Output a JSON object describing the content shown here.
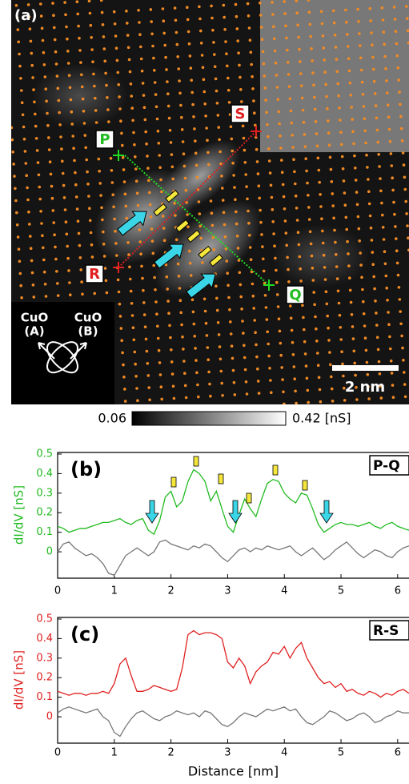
{
  "panel_a": {
    "label": "(a)",
    "points": [
      "P",
      "Q",
      "R",
      "S"
    ],
    "inset": [
      "CuO",
      "(A)",
      "CuO",
      "(B)"
    ],
    "scale_bar": "2 nm"
  },
  "colorbar": {
    "min_label": "0.06",
    "max_label": "0.42 [nS]"
  },
  "chart_data": [
    {
      "type": "line",
      "panel_label": "(b)",
      "tag": "P-Q",
      "ylabel": "dI/dV [nS]",
      "label_color": "#22bb22",
      "x": [
        0,
        0.1,
        0.2,
        0.3,
        0.4,
        0.5,
        0.6,
        0.7,
        0.8,
        0.9,
        1.0,
        1.1,
        1.2,
        1.3,
        1.4,
        1.5,
        1.6,
        1.7,
        1.8,
        1.9,
        2.0,
        2.1,
        2.2,
        2.3,
        2.4,
        2.5,
        2.6,
        2.7,
        2.8,
        2.9,
        3.0,
        3.1,
        3.2,
        3.3,
        3.4,
        3.5,
        3.6,
        3.7,
        3.8,
        3.9,
        4.0,
        4.1,
        4.2,
        4.3,
        4.4,
        4.5,
        4.6,
        4.7,
        4.8,
        4.9,
        5.0,
        5.1,
        5.2,
        5.3,
        5.4,
        5.5,
        5.6,
        5.7,
        5.8,
        5.9,
        6.0,
        6.1,
        6.2
      ],
      "series": [
        {
          "color": "#22bb22",
          "values": [
            0.13,
            0.12,
            0.1,
            0.11,
            0.12,
            0.12,
            0.13,
            0.14,
            0.15,
            0.15,
            0.16,
            0.17,
            0.15,
            0.14,
            0.16,
            0.17,
            0.11,
            0.09,
            0.16,
            0.28,
            0.31,
            0.23,
            0.26,
            0.36,
            0.42,
            0.4,
            0.36,
            0.26,
            0.31,
            0.22,
            0.13,
            0.1,
            0.19,
            0.27,
            0.22,
            0.18,
            0.27,
            0.35,
            0.37,
            0.36,
            0.3,
            0.27,
            0.25,
            0.3,
            0.29,
            0.22,
            0.14,
            0.1,
            0.12,
            0.14,
            0.15,
            0.14,
            0.14,
            0.13,
            0.14,
            0.15,
            0.13,
            0.12,
            0.14,
            0.15,
            0.13,
            0.12,
            0.11
          ]
        },
        {
          "color": "#777777",
          "values": [
            0.0,
            0.04,
            0.05,
            0.02,
            0.0,
            -0.02,
            -0.01,
            -0.03,
            -0.06,
            -0.11,
            -0.12,
            -0.07,
            -0.02,
            0.0,
            0.02,
            0.0,
            -0.02,
            0.0,
            0.05,
            0.06,
            0.04,
            0.03,
            0.02,
            0.01,
            0.03,
            0.02,
            0.04,
            0.03,
            0.0,
            -0.03,
            -0.05,
            -0.02,
            0.01,
            0.02,
            0.0,
            0.02,
            0.01,
            0.03,
            0.02,
            0.01,
            0.02,
            0.03,
            0.0,
            -0.02,
            0.0,
            0.02,
            -0.01,
            -0.04,
            -0.02,
            0.01,
            0.03,
            0.05,
            0.02,
            -0.01,
            -0.03,
            -0.01,
            0.01,
            0.0,
            -0.02,
            -0.03,
            0.0,
            0.02,
            0.03
          ]
        }
      ],
      "xlim": [
        0,
        6.2
      ],
      "ylim": [
        -0.135,
        0.5
      ],
      "xticks": [
        0,
        1,
        2,
        3,
        4,
        5,
        6
      ],
      "yticks": [
        0,
        0.1,
        0.2,
        0.3,
        0.4,
        0.5
      ]
    },
    {
      "type": "line",
      "panel_label": "(c)",
      "tag": "R-S",
      "ylabel": "dI/dV [nS]",
      "xlabel": "Distance [nm]",
      "label_color": "#e02020",
      "x": [
        0,
        0.1,
        0.2,
        0.3,
        0.4,
        0.5,
        0.6,
        0.7,
        0.8,
        0.9,
        1.0,
        1.1,
        1.2,
        1.3,
        1.4,
        1.5,
        1.6,
        1.7,
        1.8,
        1.9,
        2.0,
        2.1,
        2.2,
        2.3,
        2.4,
        2.5,
        2.6,
        2.7,
        2.8,
        2.9,
        3.0,
        3.1,
        3.2,
        3.3,
        3.4,
        3.5,
        3.6,
        3.7,
        3.8,
        3.9,
        4.0,
        4.1,
        4.2,
        4.3,
        4.4,
        4.5,
        4.6,
        4.7,
        4.8,
        4.9,
        5.0,
        5.1,
        5.2,
        5.3,
        5.4,
        5.5,
        5.6,
        5.7,
        5.8,
        5.9,
        6.0,
        6.1,
        6.2
      ],
      "series": [
        {
          "color": "#e02020",
          "values": [
            0.13,
            0.12,
            0.11,
            0.12,
            0.12,
            0.11,
            0.12,
            0.12,
            0.13,
            0.12,
            0.17,
            0.27,
            0.3,
            0.21,
            0.13,
            0.13,
            0.14,
            0.16,
            0.15,
            0.14,
            0.13,
            0.14,
            0.25,
            0.42,
            0.44,
            0.42,
            0.43,
            0.43,
            0.42,
            0.4,
            0.28,
            0.25,
            0.3,
            0.26,
            0.17,
            0.23,
            0.26,
            0.28,
            0.33,
            0.32,
            0.36,
            0.3,
            0.35,
            0.38,
            0.3,
            0.25,
            0.2,
            0.17,
            0.18,
            0.15,
            0.17,
            0.13,
            0.14,
            0.12,
            0.11,
            0.13,
            0.12,
            0.1,
            0.12,
            0.11,
            0.13,
            0.14,
            0.12
          ]
        },
        {
          "color": "#777777",
          "values": [
            0.02,
            0.04,
            0.05,
            0.04,
            0.03,
            0.02,
            0.03,
            0.04,
            0.0,
            -0.02,
            -0.08,
            -0.1,
            -0.05,
            -0.01,
            0.02,
            0.03,
            0.01,
            -0.01,
            -0.02,
            0.0,
            0.01,
            0.03,
            0.02,
            0.01,
            0.02,
            0.0,
            0.03,
            0.02,
            -0.01,
            -0.04,
            -0.05,
            -0.03,
            0.0,
            0.02,
            0.01,
            0.0,
            0.02,
            0.04,
            0.03,
            0.04,
            0.05,
            0.03,
            0.04,
            0.0,
            -0.03,
            -0.04,
            -0.02,
            0.0,
            0.03,
            0.02,
            0.0,
            -0.02,
            -0.01,
            0.01,
            0.02,
            0.0,
            -0.03,
            -0.02,
            0.0,
            0.01,
            0.03,
            0.02,
            0.02
          ]
        }
      ],
      "xlim": [
        0,
        6.2
      ],
      "ylim": [
        -0.135,
        0.5
      ],
      "xticks": [
        0,
        1,
        2,
        3,
        4,
        5,
        6
      ],
      "yticks": [
        0,
        0.1,
        0.2,
        0.3,
        0.4,
        0.5
      ]
    }
  ]
}
